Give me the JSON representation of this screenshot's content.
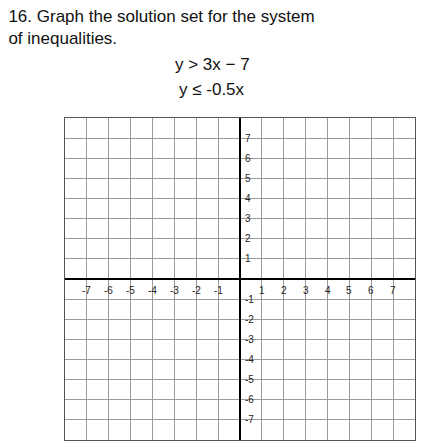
{
  "chart_data": {
    "type": "scatter",
    "title": "16. Graph the solution set for the system\nof inequalities.",
    "annotations": [
      "y > 3x − 7",
      "y ≤ -0.5x"
    ],
    "xlim": [
      -8,
      8
    ],
    "ylim": [
      -8,
      8
    ],
    "xticks": [
      -7,
      -6,
      -5,
      -4,
      -3,
      -2,
      -1,
      1,
      2,
      3,
      4,
      5,
      6,
      7
    ],
    "yticks": [
      -7,
      -6,
      -5,
      -4,
      -3,
      -2,
      -1,
      1,
      2,
      3,
      4,
      5,
      6,
      7
    ],
    "grid": true
  }
}
